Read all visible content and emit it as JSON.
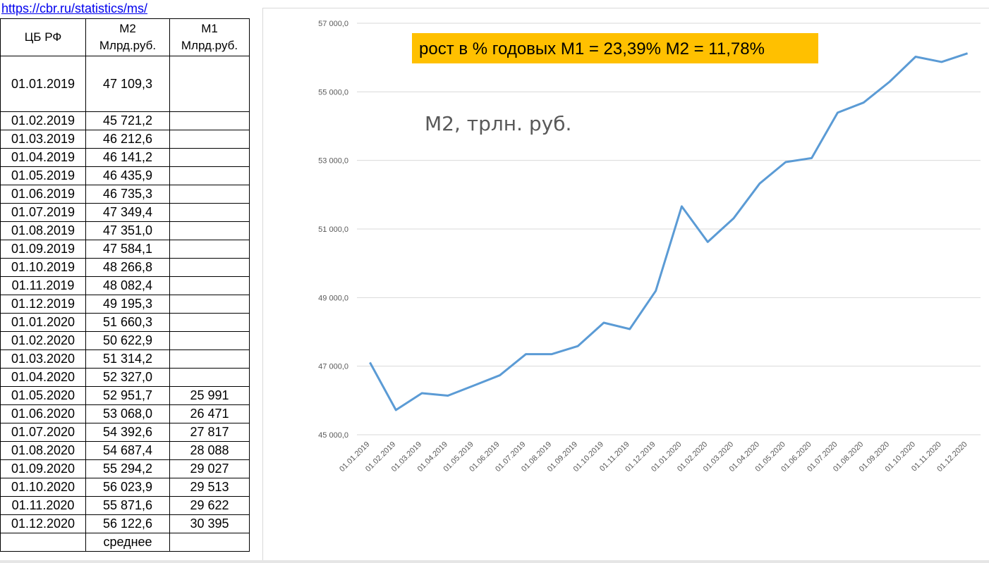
{
  "link": "https://cbr.ru/statistics/ms/",
  "table": {
    "headers": {
      "col1": "ЦБ РФ",
      "col2_line1": "М2",
      "col2_line2": "Млрд.руб.",
      "col3_line1": "М1",
      "col3_line2": "Млрд.руб."
    },
    "rows": [
      {
        "date": "01.01.2019",
        "m2": "47 109,3",
        "m1": ""
      },
      {
        "date": "01.02.2019",
        "m2": "45 721,2",
        "m1": ""
      },
      {
        "date": "01.03.2019",
        "m2": "46 212,6",
        "m1": ""
      },
      {
        "date": "01.04.2019",
        "m2": "46 141,2",
        "m1": ""
      },
      {
        "date": "01.05.2019",
        "m2": "46 435,9",
        "m1": ""
      },
      {
        "date": "01.06.2019",
        "m2": "46 735,3",
        "m1": ""
      },
      {
        "date": "01.07.2019",
        "m2": "47 349,4",
        "m1": ""
      },
      {
        "date": "01.08.2019",
        "m2": "47 351,0",
        "m1": ""
      },
      {
        "date": "01.09.2019",
        "m2": "47 584,1",
        "m1": ""
      },
      {
        "date": "01.10.2019",
        "m2": "48 266,8",
        "m1": ""
      },
      {
        "date": "01.11.2019",
        "m2": "48 082,4",
        "m1": ""
      },
      {
        "date": "01.12.2019",
        "m2": "49 195,3",
        "m1": ""
      },
      {
        "date": "01.01.2020",
        "m2": "51 660,3",
        "m1": ""
      },
      {
        "date": "01.02.2020",
        "m2": "50 622,9",
        "m1": ""
      },
      {
        "date": "01.03.2020",
        "m2": "51 314,2",
        "m1": ""
      },
      {
        "date": "01.04.2020",
        "m2": "52 327,0",
        "m1": ""
      },
      {
        "date": "01.05.2020",
        "m2": "52 951,7",
        "m1": "25 991"
      },
      {
        "date": "01.06.2020",
        "m2": "53 068,0",
        "m1": "26 471"
      },
      {
        "date": "01.07.2020",
        "m2": "54 392,6",
        "m1": "27 817"
      },
      {
        "date": "01.08.2020",
        "m2": "54 687,4",
        "m1": "28 088"
      },
      {
        "date": "01.09.2020",
        "m2": "55 294,2",
        "m1": "29 027"
      },
      {
        "date": "01.10.2020",
        "m2": "56 023,9",
        "m1": "29 513"
      },
      {
        "date": "01.11.2020",
        "m2": "55 871,6",
        "m1": "29 622"
      },
      {
        "date": "01.12.2020",
        "m2": "56 122,6",
        "m1": "30 395"
      }
    ],
    "footer": "среднее"
  },
  "chart_data": {
    "type": "line",
    "title": "М2, трлн. руб.",
    "annotation": "рост в % годовых М1 = 23,39% М2 =  11,78%",
    "annotation_color": "#ffc000",
    "line_color": "#5b9bd5",
    "categories": [
      "01.01.2019",
      "01.02.2019",
      "01.03.2019",
      "01.04.2019",
      "01.05.2019",
      "01.06.2019",
      "01.07.2019",
      "01.08.2019",
      "01.09.2019",
      "01.10.2019",
      "01.11.2019",
      "01.12.2019",
      "01.01.2020",
      "01.02.2020",
      "01.03.2020",
      "01.04.2020",
      "01.05.2020",
      "01.06.2020",
      "01.07.2020",
      "01.08.2020",
      "01.09.2020",
      "01.10.2020",
      "01.11.2020",
      "01.12.2020"
    ],
    "values": [
      47109.3,
      45721.2,
      46212.6,
      46141.2,
      46435.9,
      46735.3,
      47349.4,
      47351.0,
      47584.1,
      48266.8,
      48082.4,
      49195.3,
      51660.3,
      50622.9,
      51314.2,
      52327.0,
      52951.7,
      53068.0,
      54392.6,
      54687.4,
      55294.2,
      56023.9,
      55871.6,
      56122.6
    ],
    "ylim": [
      45000,
      57000
    ],
    "yticks": [
      45000,
      47000,
      49000,
      51000,
      53000,
      55000,
      57000
    ],
    "ytick_labels": [
      "45 000,0",
      "47 000,0",
      "49 000,0",
      "51 000,0",
      "53 000,0",
      "55 000,0",
      "57 000,0"
    ],
    "grid": "horizontal"
  }
}
